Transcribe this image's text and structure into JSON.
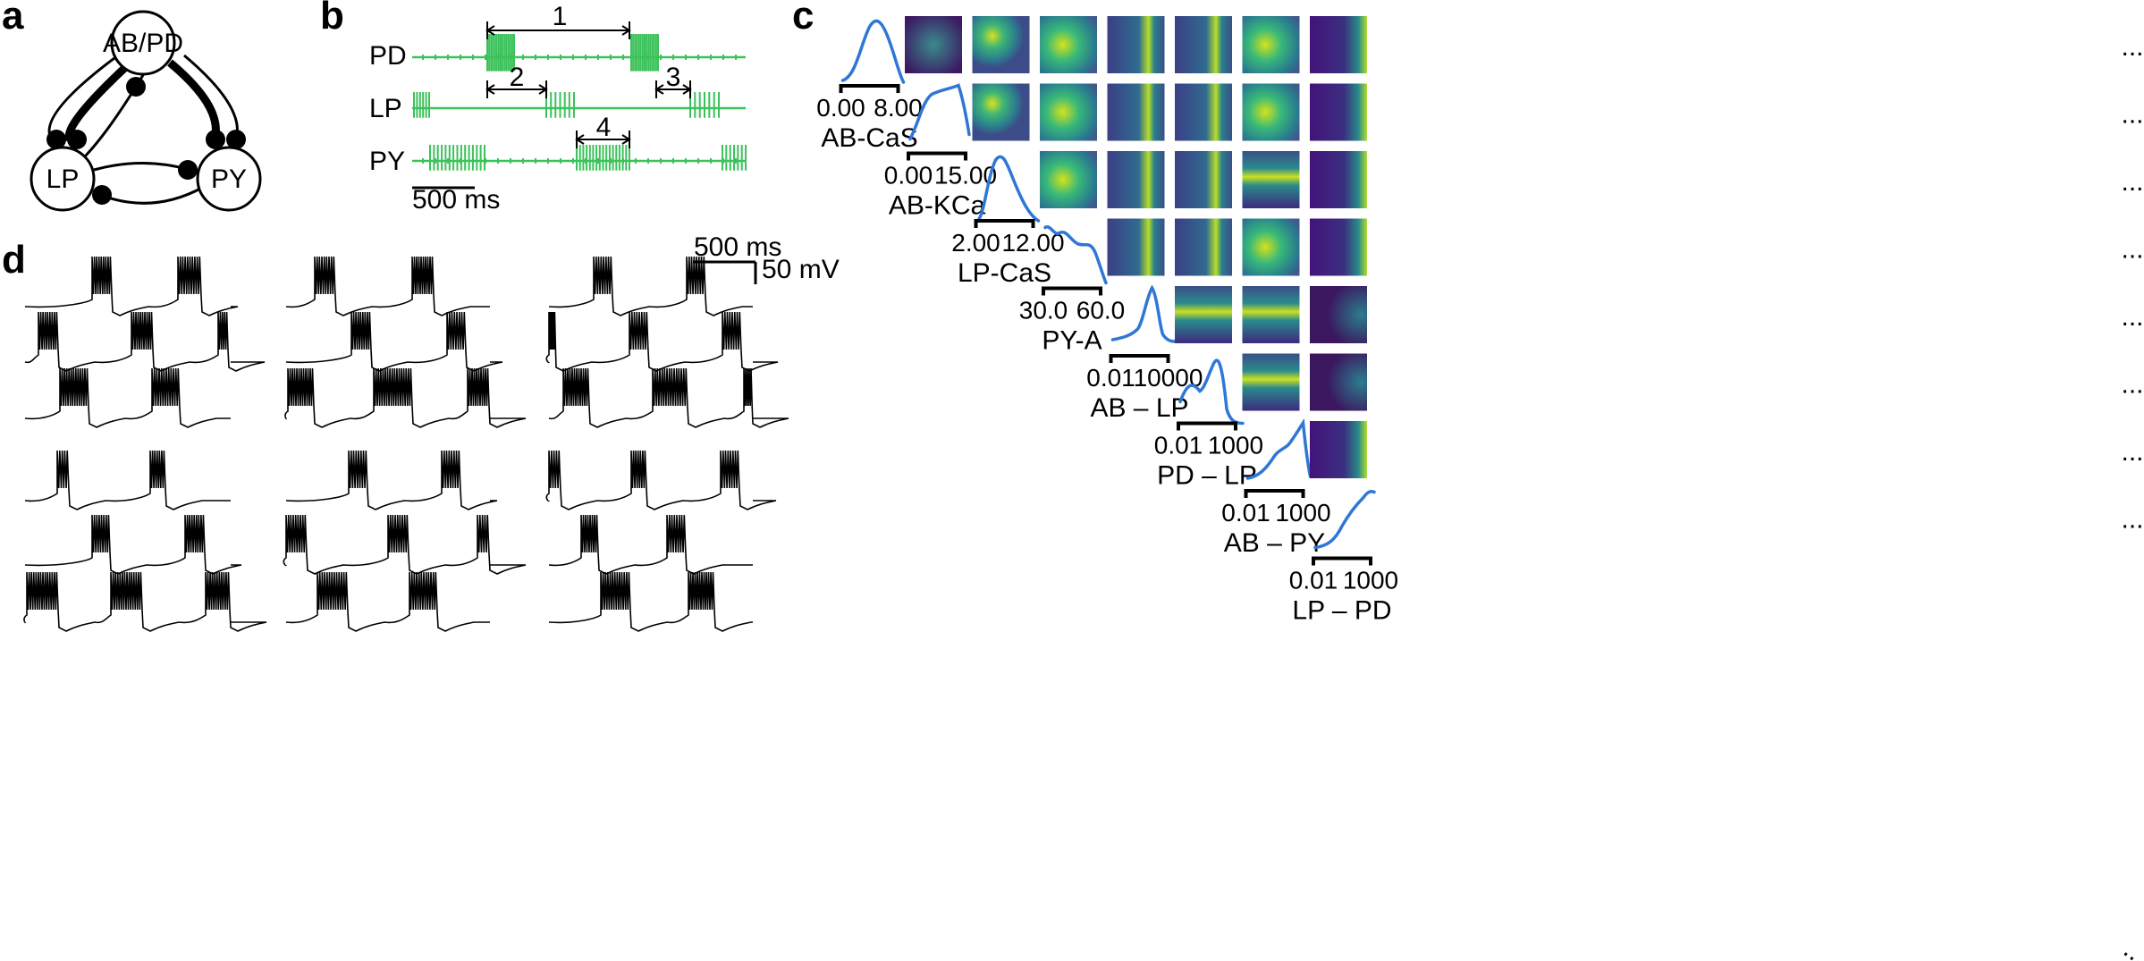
{
  "panel_labels": {
    "a": "a",
    "b": "b",
    "c": "c",
    "d": "d"
  },
  "colors": {
    "trace_b": "#3cc25b",
    "density": "#2f77d6",
    "black": "#000000"
  },
  "panel_a": {
    "nodes": [
      {
        "id": "abpd",
        "label": "AB/PD"
      },
      {
        "id": "lp",
        "label": "LP"
      },
      {
        "id": "py",
        "label": "PY"
      }
    ]
  },
  "panel_b": {
    "traces": [
      "PD",
      "LP",
      "PY"
    ],
    "intervals": [
      "1",
      "2",
      "3",
      "4"
    ],
    "scale_bar": "500 ms"
  },
  "panel_c": {
    "params": [
      {
        "name": "AB-CaS",
        "lo": "0.00",
        "hi": "8.00"
      },
      {
        "name": "AB-KCa",
        "lo": "0.00",
        "hi": "15.00"
      },
      {
        "name": "LP-CaS",
        "lo": "2.00",
        "hi": "12.00"
      },
      {
        "name": "PY-A",
        "lo": "30.0",
        "hi": "60.0"
      },
      {
        "name": "AB – LP",
        "lo": "0.01",
        "hi": "10000"
      },
      {
        "name": "PD – LP",
        "lo": "0.01",
        "hi": "1000"
      },
      {
        "name": "AB – PY",
        "lo": "0.01",
        "hi": "1000"
      },
      {
        "name": "LP – PD",
        "lo": "0.01",
        "hi": "1000"
      }
    ],
    "ellipsis": "..."
  },
  "panel_d": {
    "scale_time": "500 ms",
    "scale_voltage": "50 mV"
  }
}
